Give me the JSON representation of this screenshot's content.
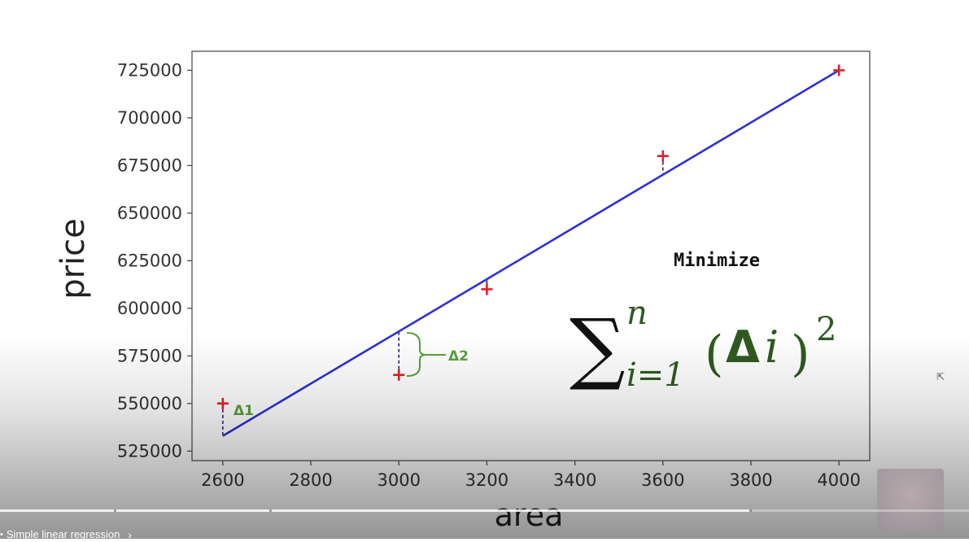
{
  "chart_data": {
    "type": "scatter",
    "x": [
      2600,
      3000,
      3200,
      3600,
      4000
    ],
    "y": [
      550000,
      565000,
      610000,
      680000,
      725000
    ],
    "fit_line": {
      "x": [
        2600,
        4000
      ],
      "y": [
        533000,
        725000
      ]
    },
    "xlabel": "area",
    "ylabel": "price",
    "xticks": [
      "2600",
      "2800",
      "3000",
      "3200",
      "3400",
      "3600",
      "3800",
      "4000"
    ],
    "xtick_values": [
      2600,
      2800,
      3000,
      3200,
      3400,
      3600,
      3800,
      4000
    ],
    "yticks": [
      "525000",
      "550000",
      "575000",
      "600000",
      "625000",
      "650000",
      "675000",
      "700000",
      "725000"
    ],
    "ytick_values": [
      525000,
      550000,
      575000,
      600000,
      625000,
      650000,
      675000,
      700000,
      725000
    ],
    "xlim": [
      2530,
      4070
    ],
    "ylim": [
      520000,
      735000
    ],
    "grid": false,
    "point_marker": "+",
    "colors": {
      "points": "#e0202a",
      "line": "#2f2fd6",
      "residual": "#3a1a7a",
      "annotation": "#5aa03c",
      "formula": "#2f5a1f"
    },
    "annotations": {
      "delta1": "Δ1",
      "delta2": "Δ2",
      "minimize_label": "Minimize",
      "formula": {
        "sum_symbol": "∑",
        "upper": "n",
        "lower": "i=1",
        "open_paren": "(",
        "delta": "Δ",
        "index": "i",
        "close_paren": ")",
        "power": "2"
      }
    }
  },
  "player": {
    "chapter_label": "Simple linear regression",
    "chapter_bullet": "•",
    "chevron": "›",
    "progress_fraction": 0.775,
    "cursor_icon": "pointer-cursor-icon"
  }
}
